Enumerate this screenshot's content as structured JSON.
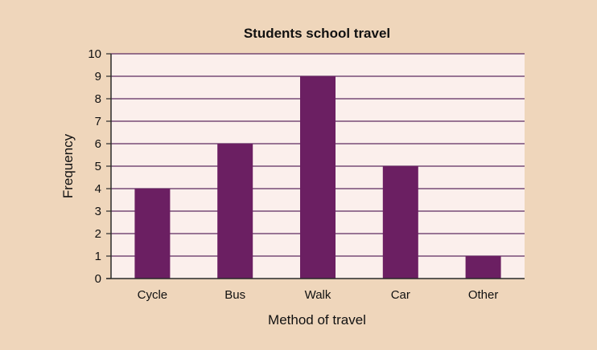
{
  "chart_data": {
    "type": "bar",
    "title": "Students school travel",
    "xlabel": "Method of travel",
    "ylabel": "Frequency",
    "categories": [
      "Cycle",
      "Bus",
      "Walk",
      "Car",
      "Other"
    ],
    "values": [
      4,
      6,
      9,
      5,
      1
    ],
    "ylim": [
      0,
      10
    ],
    "yticks": [
      "0",
      "1",
      "2",
      "3",
      "4",
      "5",
      "6",
      "7",
      "8",
      "9",
      "10"
    ],
    "grid": true,
    "colors": {
      "background": "#efd6bb",
      "plot_area": "#fbefec",
      "bar": "#6b1f62",
      "gridline": "#5c2a60",
      "axis": "#2a2a2a"
    }
  }
}
